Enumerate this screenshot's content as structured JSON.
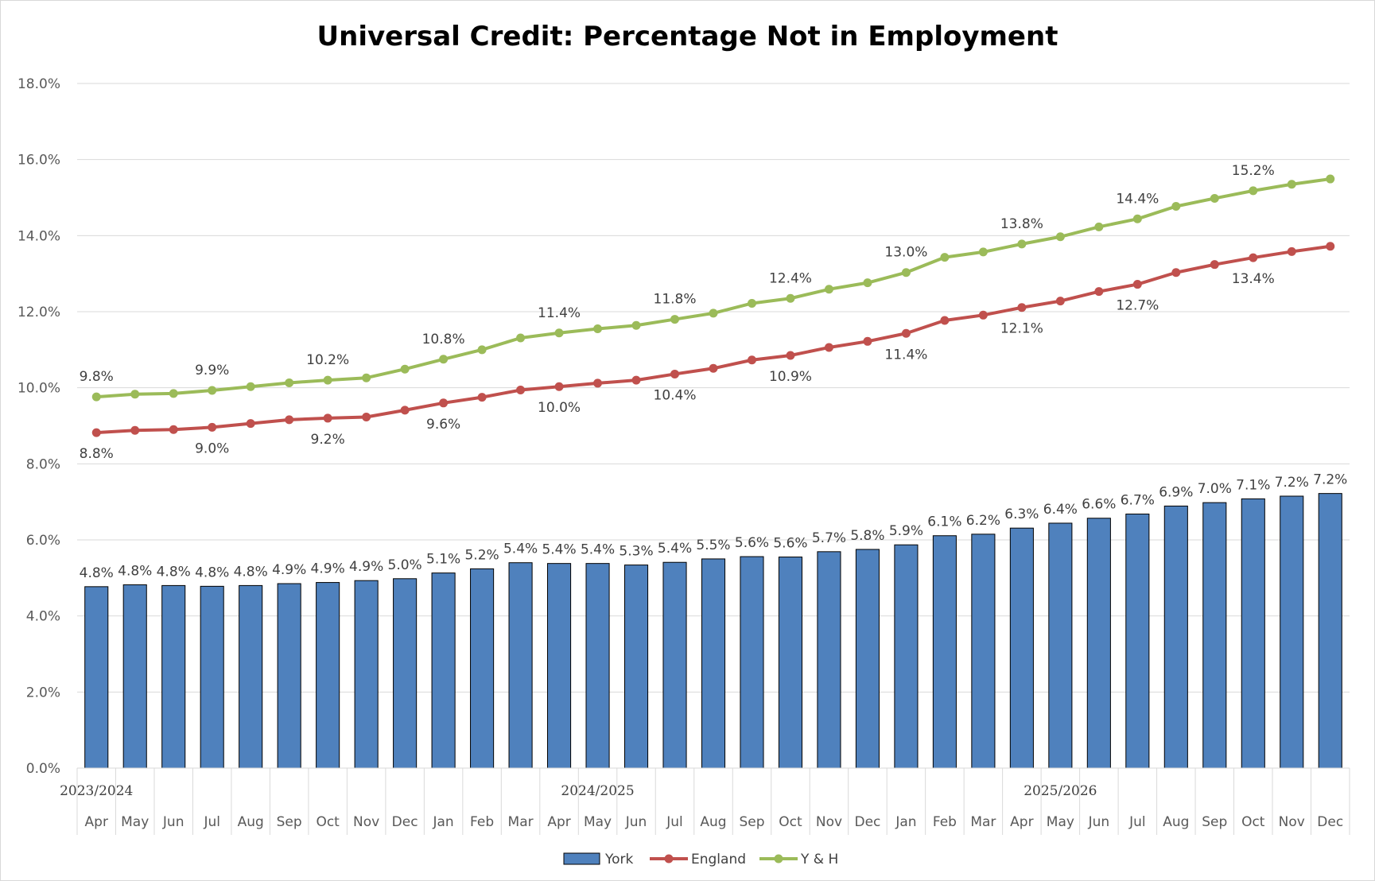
{
  "chart_data": {
    "type": "bar",
    "title": "Universal Credit: Percentage Not in Employment",
    "xlabel": "",
    "ylabel": "",
    "ylim": [
      0,
      18
    ],
    "y_ticks": [
      "0.0%",
      "2.0%",
      "4.0%",
      "6.0%",
      "8.0%",
      "10.0%",
      "12.0%",
      "14.0%",
      "16.0%",
      "18.0%"
    ],
    "grid": true,
    "legend_position": "bottom",
    "categories": [
      "Apr",
      "May",
      "Jun",
      "Jul",
      "Aug",
      "Sep",
      "Oct",
      "Nov",
      "Dec",
      "Jan",
      "Feb",
      "Mar",
      "Apr",
      "May",
      "Jun",
      "Jul",
      "Aug",
      "Sep",
      "Oct",
      "Nov",
      "Dec",
      "Jan",
      "Feb",
      "Mar",
      "Apr",
      "May",
      "Jun",
      "Jul",
      "Aug",
      "Sep",
      "Oct",
      "Nov",
      "Dec"
    ],
    "year_groups": [
      {
        "label": "2023/2024",
        "start": 0
      },
      {
        "label": "2024/2025",
        "start": 12
      },
      {
        "label": "2025/2026",
        "start": 24
      }
    ],
    "series": [
      {
        "name": "York",
        "type": "bar",
        "color": "#4f81bd",
        "values": [
          4.77,
          4.82,
          4.8,
          4.78,
          4.8,
          4.85,
          4.88,
          4.93,
          4.98,
          5.13,
          5.24,
          5.4,
          5.38,
          5.38,
          5.34,
          5.41,
          5.5,
          5.56,
          5.55,
          5.69,
          5.75,
          5.87,
          6.11,
          6.15,
          6.31,
          6.44,
          6.57,
          6.68,
          6.89,
          6.98,
          7.08,
          7.15,
          7.22
        ],
        "labels": [
          "4.8%",
          "4.8%",
          "4.8%",
          "4.8%",
          "4.8%",
          "4.9%",
          "4.9%",
          "4.9%",
          "5.0%",
          "5.1%",
          "5.2%",
          "5.4%",
          "5.4%",
          "5.4%",
          "5.3%",
          "5.4%",
          "5.5%",
          "5.6%",
          "5.6%",
          "5.7%",
          "5.8%",
          "5.9%",
          "6.1%",
          "6.2%",
          "6.3%",
          "6.4%",
          "6.6%",
          "6.7%",
          "6.9%",
          "7.0%",
          "7.1%",
          "7.2%",
          "7.2%"
        ]
      },
      {
        "name": "England",
        "type": "line",
        "color": "#c0504d",
        "values": [
          8.82,
          8.88,
          8.9,
          8.96,
          9.06,
          9.16,
          9.2,
          9.23,
          9.41,
          9.6,
          9.75,
          9.94,
          10.03,
          10.12,
          10.2,
          10.36,
          10.51,
          10.73,
          10.85,
          11.06,
          11.22,
          11.43,
          11.77,
          11.91,
          12.11,
          12.28,
          12.53,
          12.72,
          13.03,
          13.24,
          13.42,
          13.58,
          13.72
        ],
        "labels": [
          "8.8%",
          "",
          "",
          "9.0%",
          "",
          "",
          "9.2%",
          "",
          "",
          "9.6%",
          "",
          "",
          "10.0%",
          "",
          "",
          "10.4%",
          "",
          "",
          "10.9%",
          "",
          "",
          "11.4%",
          "",
          "",
          "12.1%",
          "",
          "",
          "12.7%",
          "",
          "",
          "13.4%",
          "",
          ""
        ]
      },
      {
        "name": "Y & H",
        "type": "line",
        "color": "#9bbb59",
        "values": [
          9.76,
          9.83,
          9.85,
          9.93,
          10.03,
          10.13,
          10.2,
          10.26,
          10.49,
          10.75,
          11.0,
          11.31,
          11.44,
          11.55,
          11.64,
          11.8,
          11.96,
          12.22,
          12.35,
          12.59,
          12.76,
          13.03,
          13.43,
          13.57,
          13.78,
          13.97,
          14.23,
          14.44,
          14.77,
          14.98,
          15.18,
          15.35,
          15.49
        ],
        "labels": [
          "9.8%",
          "",
          "",
          "9.9%",
          "",
          "",
          "10.2%",
          "",
          "",
          "10.8%",
          "",
          "",
          "11.4%",
          "",
          "",
          "11.8%",
          "",
          "",
          "12.4%",
          "",
          "",
          "13.0%",
          "",
          "",
          "13.8%",
          "",
          "",
          "14.4%",
          "",
          "",
          "15.2%",
          "",
          ""
        ]
      }
    ]
  }
}
